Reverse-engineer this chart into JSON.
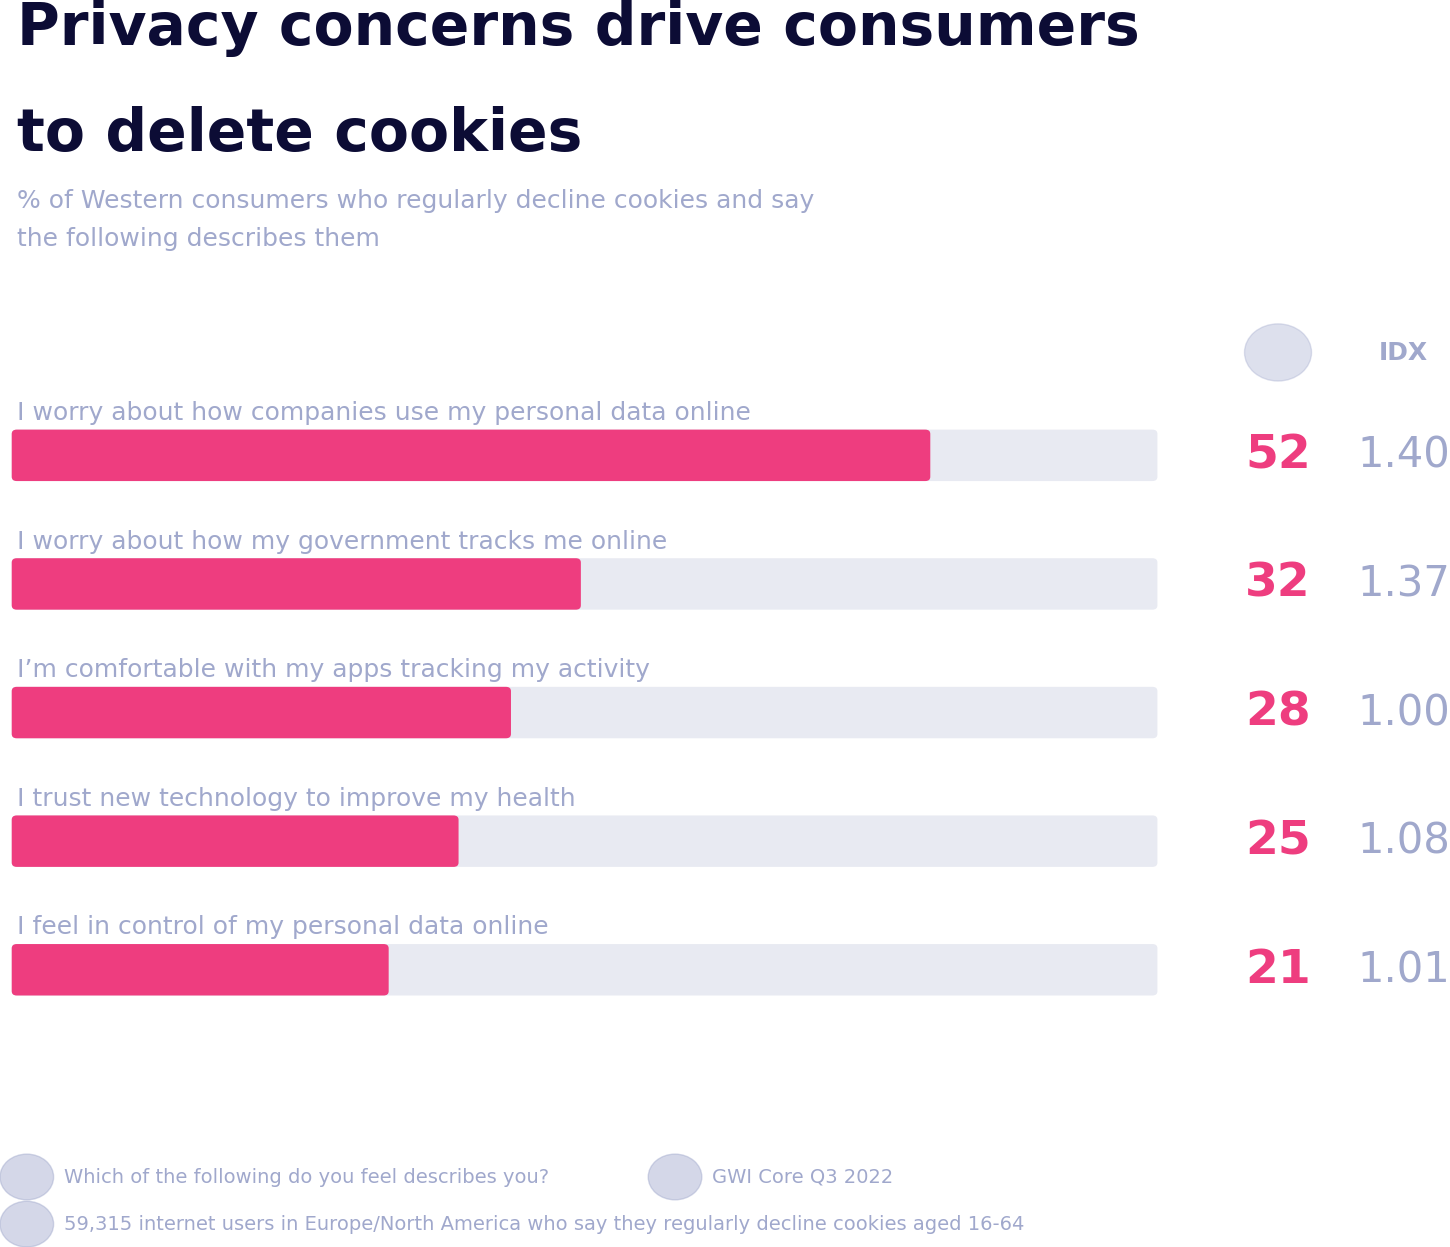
{
  "title_line1": "Privacy concerns drive consumers",
  "title_line2": "to delete cookies",
  "subtitle_line1": "% of Western consumers who regularly decline cookies and say",
  "subtitle_line2": "the following describes them",
  "categories": [
    "I worry about how companies use my personal data online",
    "I worry about how my government tracks me online",
    "I’m comfortable with my apps tracking my activity",
    "I trust new technology to improve my health",
    "I feel in control of my personal data online"
  ],
  "values": [
    52,
    32,
    28,
    25,
    21
  ],
  "idx_values": [
    "1.40",
    "1.37",
    "1.00",
    "1.08",
    "1.01"
  ],
  "max_value": 65,
  "bar_color": "#EE3D7F",
  "bar_bg_color": "#E8EAF2",
  "title_color": "#0C0C35",
  "subtitle_color": "#A0A8CC",
  "value_color": "#EE3D7F",
  "idx_color": "#A0A8CC",
  "label_color": "#A0A8CC",
  "header_color": "#A0A8CC",
  "footer_color": "#A0A8CC",
  "background_color": "#FFFFFF",
  "footer_q": "Which of the following do you feel describes you?",
  "footer_source": "GWI Core Q3 2022",
  "footer_sample": "59,315 internet users in Europe/North America who say they regularly decline cookies aged 16-64"
}
